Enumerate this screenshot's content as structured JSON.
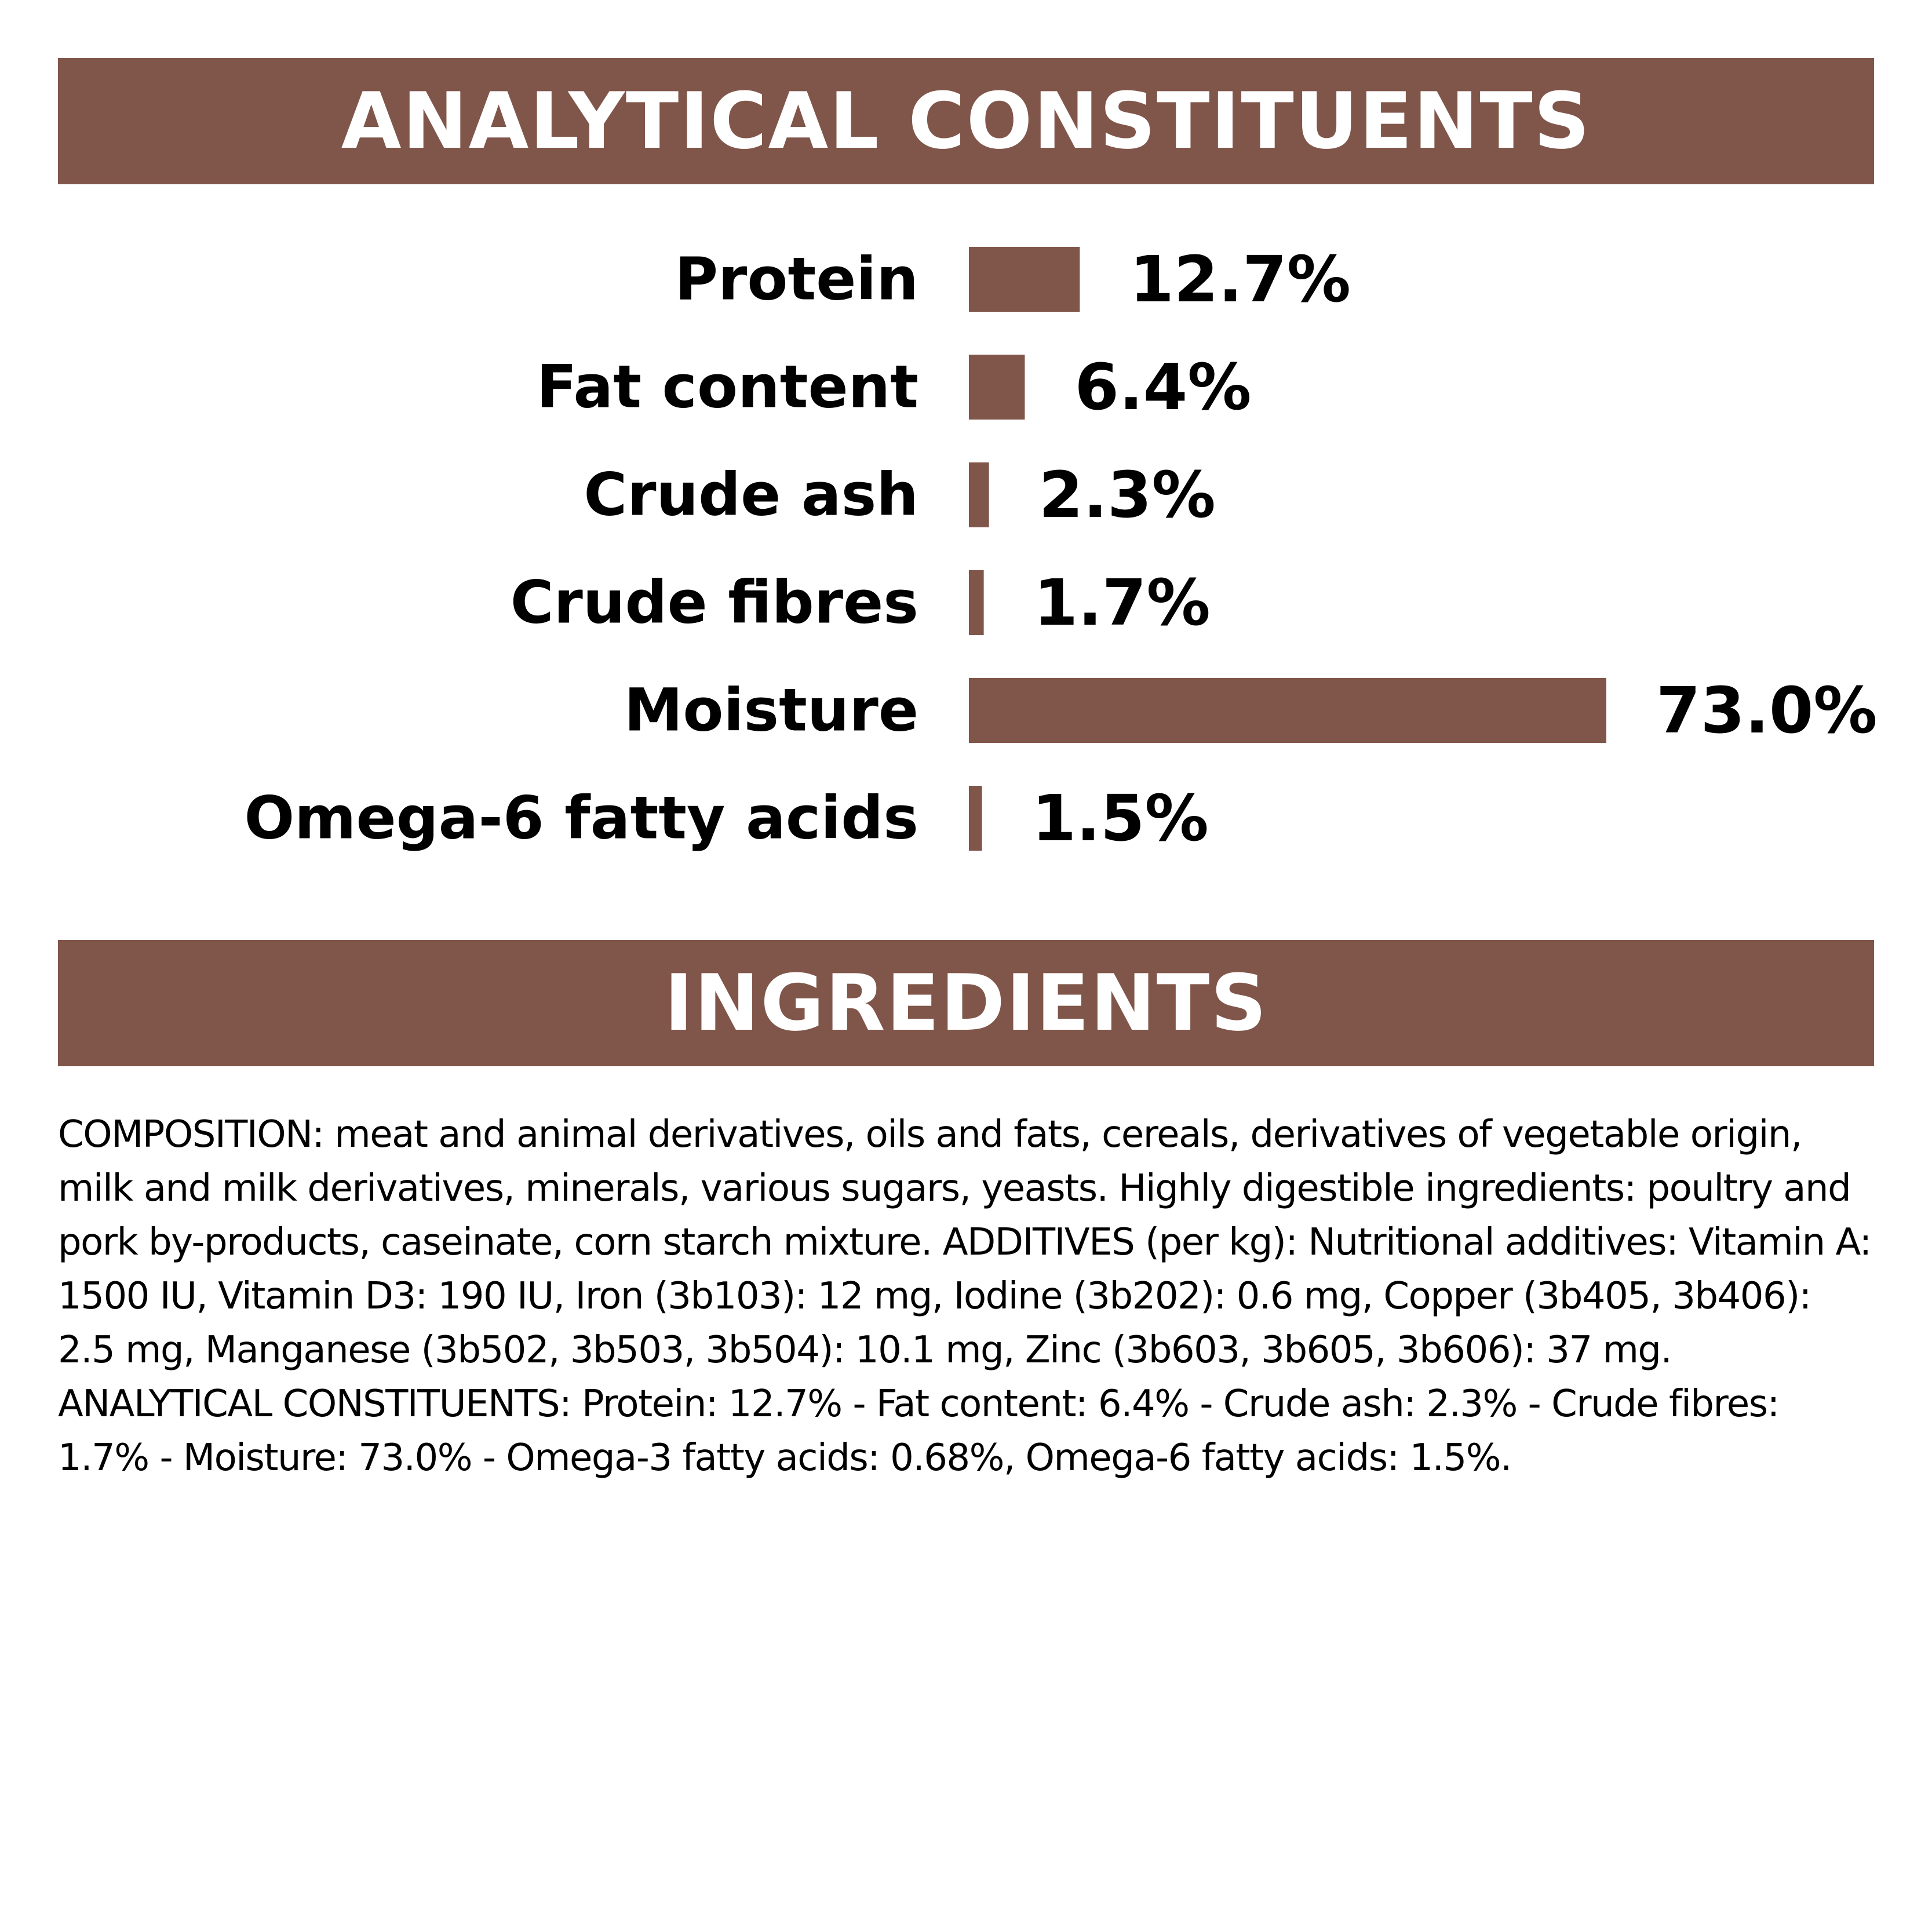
{
  "colors": {
    "accent": "#81564a",
    "banner_text": "#ffffff",
    "text": "#000000",
    "background": "#ffffff"
  },
  "sections": {
    "analytical_title": "ANALYTICAL CONSTITUENTS",
    "ingredients_title": "INGREDIENTS"
  },
  "chart_data": {
    "type": "bar",
    "orientation": "horizontal",
    "title": "ANALYTICAL CONSTITUENTS",
    "categories": [
      "Protein",
      "Fat content",
      "Crude ash",
      "Crude fibres",
      "Moisture",
      "Omega-6 fatty acids"
    ],
    "values": [
      12.7,
      6.4,
      2.3,
      1.7,
      73.0,
      1.5
    ],
    "value_labels": [
      "12.7%",
      "6.4%",
      "2.3%",
      "1.7%",
      "73.0%",
      "1.5%"
    ],
    "unit": "%",
    "xlim": [
      0,
      73.0
    ],
    "grid": false,
    "legend": "none",
    "bar_color": "#81564a"
  },
  "ingredients": {
    "text": "COMPOSITION: meat and animal derivatives, oils and fats, cereals, derivatives of vegetable origin, milk and milk derivatives, minerals, various sugars, yeasts. Highly digestible ingredients: poultry and pork by-products, caseinate, corn starch mixture. ADDITIVES (per kg): Nutritional additives: Vitamin A: 1500 IU, Vitamin D3: 190 IU, Iron (3b103): 12 mg, Iodine (3b202): 0.6 mg, Copper (3b405, 3b406): 2.5 mg, Manganese (3b502, 3b503, 3b504): 10.1 mg, Zinc (3b603, 3b605, 3b606): 37 mg. ANALYTICAL CONSTITUENTS: Protein: 12.7% - Fat content: 6.4% - Crude ash: 2.3% - Crude fibres: 1.7% - Moisture: 73.0% - Omega-3 fatty acids: 0.68%, Omega-6 fatty acids: 1.5%."
  }
}
